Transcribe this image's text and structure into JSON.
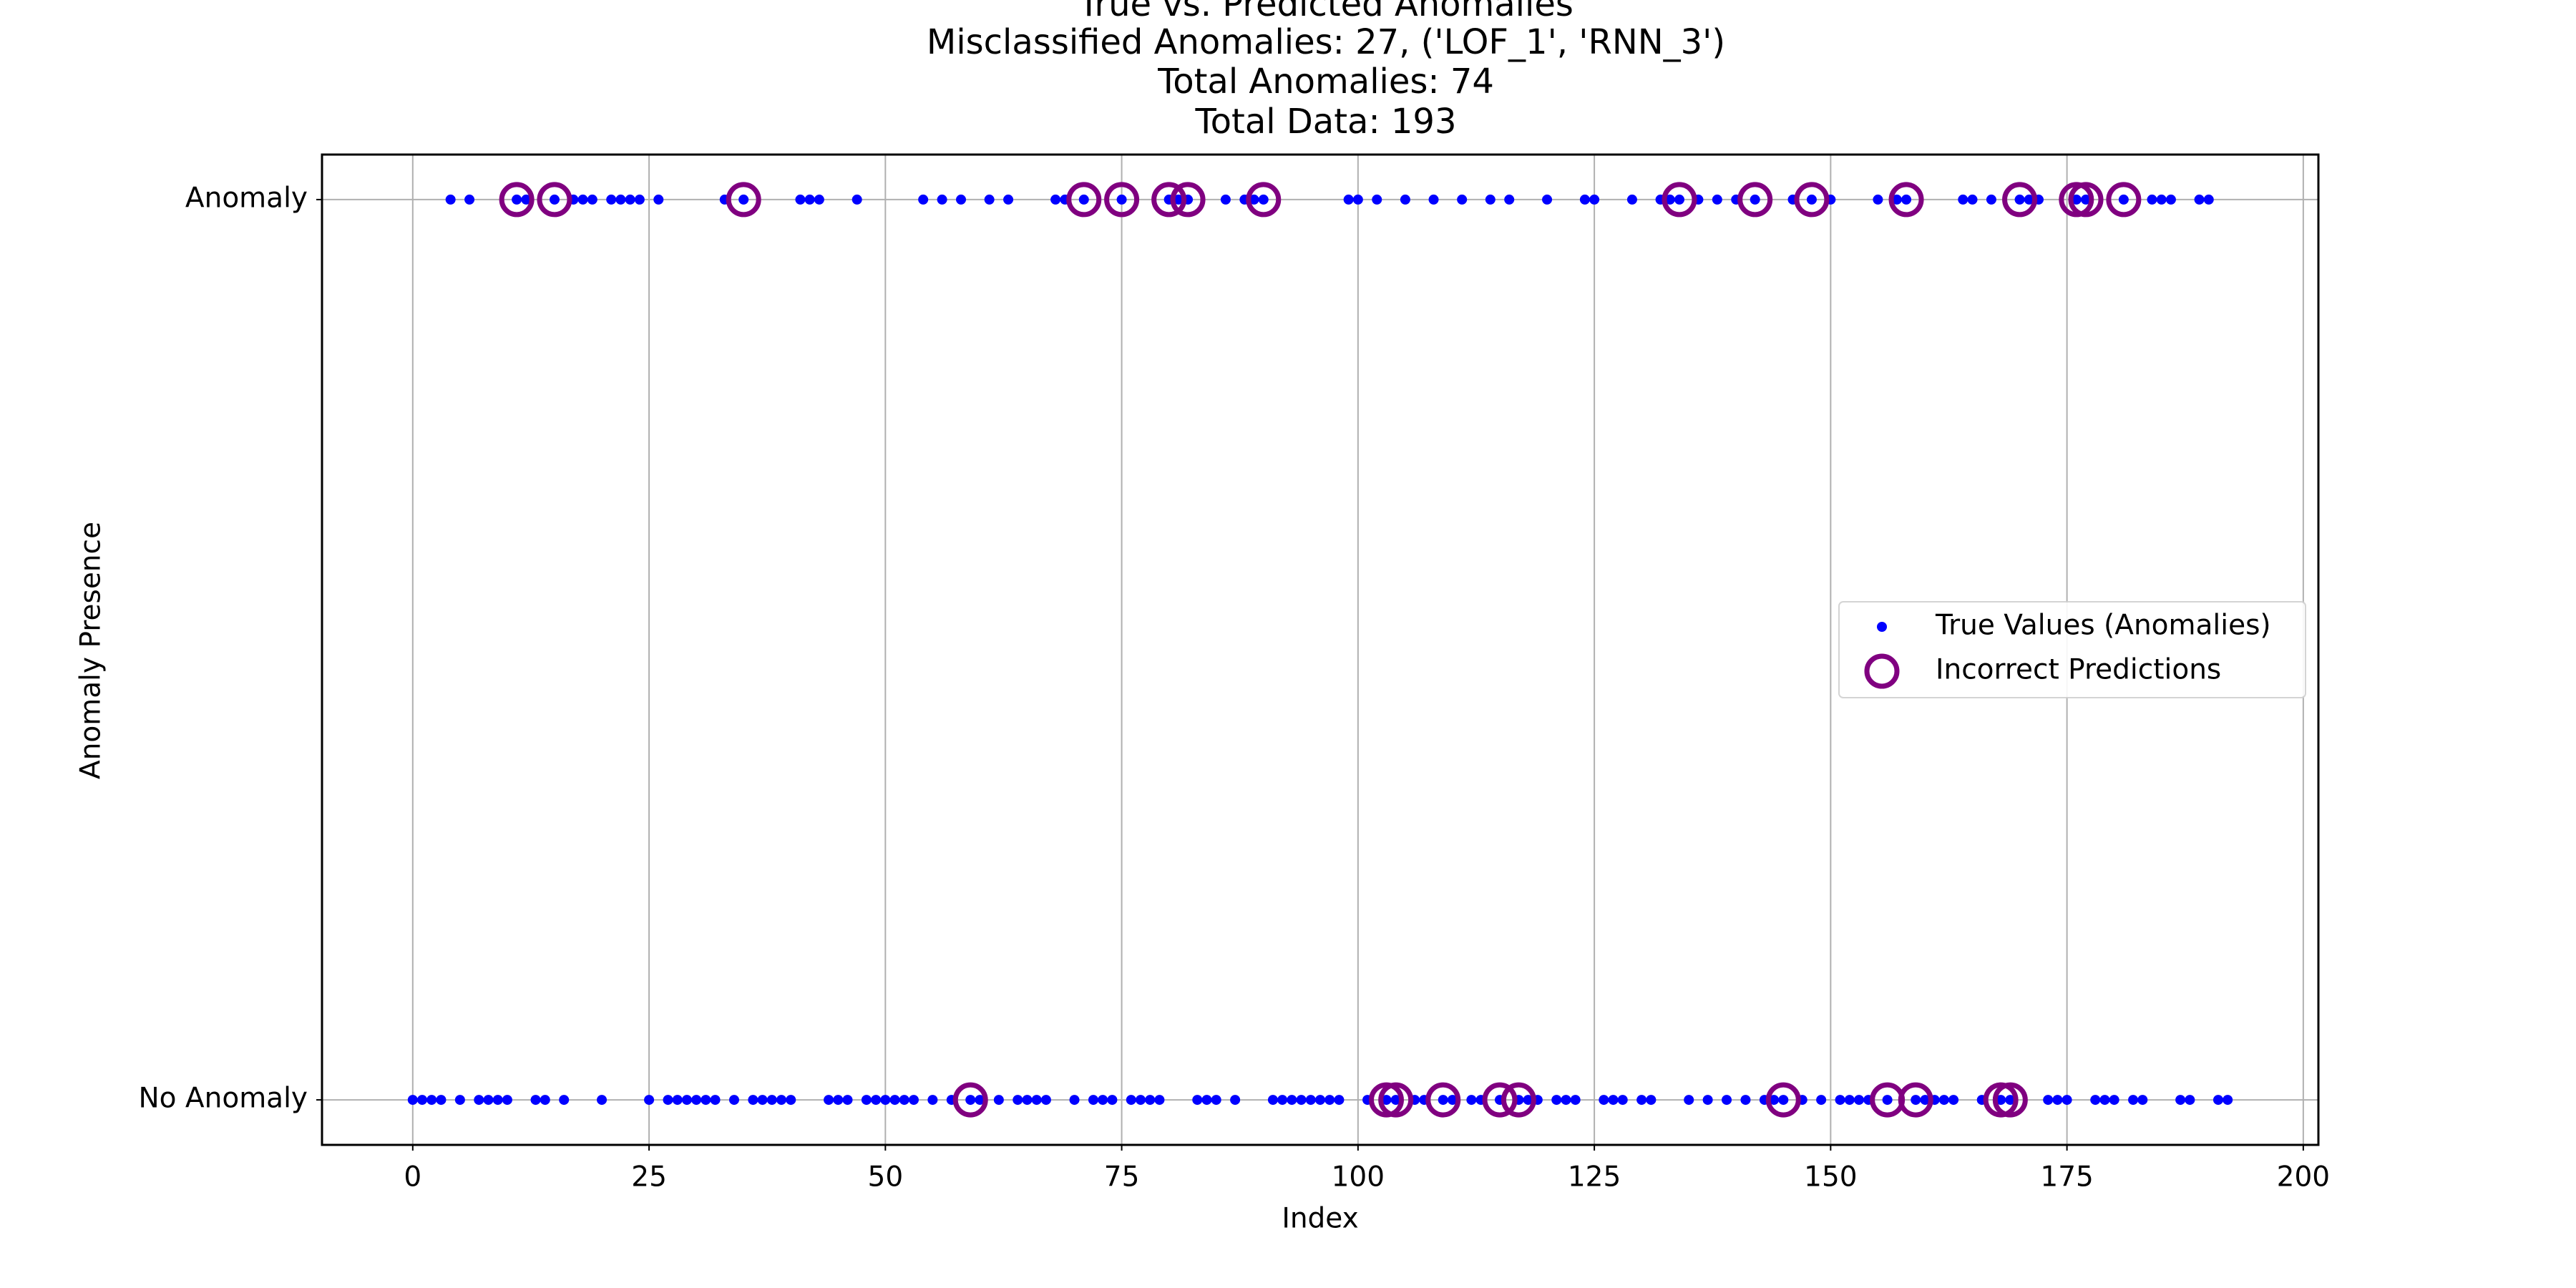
{
  "chart_data": {
    "type": "scatter",
    "title": [
      "True vs. Predicted Anomalies",
      "Misclassified Anomalies: 27, ('LOF_1', 'RNN_3')",
      "Total Anomalies: 74",
      "Total Data: 193"
    ],
    "x_label": "Index",
    "y_label": "Anomaly Presence",
    "xlim": [
      -9.6,
      201.6
    ],
    "xticks": [
      0,
      25,
      50,
      75,
      100,
      125,
      150,
      175,
      200
    ],
    "ylim": [
      -0.05,
      1.05
    ],
    "yticks": [
      {
        "value": 0,
        "label": "No Anomaly"
      },
      {
        "value": 1,
        "label": "Anomaly"
      }
    ],
    "grid": true,
    "legend": "center right",
    "series": [
      {
        "name": "True Values (Anomalies)",
        "color": "#0000ff",
        "marker": "dot",
        "x": [
          0,
          1,
          2,
          3,
          4,
          5,
          6,
          7,
          8,
          9,
          10,
          11,
          12,
          13,
          14,
          15,
          16,
          17,
          18,
          19,
          20,
          21,
          22,
          23,
          24,
          25,
          26,
          27,
          28,
          29,
          30,
          31,
          32,
          33,
          34,
          35,
          36,
          37,
          38,
          39,
          40,
          41,
          42,
          43,
          44,
          45,
          46,
          47,
          48,
          49,
          50,
          51,
          52,
          53,
          54,
          55,
          56,
          57,
          58,
          59,
          60,
          61,
          62,
          63,
          64,
          65,
          66,
          67,
          68,
          69,
          70,
          71,
          72,
          73,
          74,
          75,
          76,
          77,
          78,
          79,
          80,
          81,
          82,
          83,
          84,
          85,
          86,
          87,
          88,
          89,
          90,
          91,
          92,
          93,
          94,
          95,
          96,
          97,
          98,
          99,
          100,
          101,
          102,
          103,
          104,
          105,
          106,
          107,
          108,
          109,
          110,
          111,
          112,
          113,
          114,
          115,
          116,
          117,
          118,
          119,
          120,
          121,
          122,
          123,
          124,
          125,
          126,
          127,
          128,
          129,
          130,
          131,
          132,
          133,
          134,
          135,
          136,
          137,
          138,
          139,
          140,
          141,
          142,
          143,
          144,
          145,
          146,
          147,
          148,
          149,
          150,
          151,
          152,
          153,
          154,
          155,
          156,
          157,
          158,
          159,
          160,
          161,
          162,
          163,
          164,
          165,
          166,
          167,
          168,
          169,
          170,
          171,
          172,
          173,
          174,
          175,
          176,
          177,
          178,
          179,
          180,
          181,
          182,
          183,
          184,
          185,
          186,
          187,
          188,
          189,
          190,
          191,
          192
        ],
        "values": [
          0,
          0,
          0,
          0,
          1,
          0,
          1,
          0,
          0,
          0,
          0,
          1,
          1,
          0,
          0,
          1,
          0,
          1,
          1,
          1,
          0,
          1,
          1,
          1,
          1,
          0,
          1,
          0,
          0,
          0,
          0,
          0,
          0,
          1,
          0,
          1,
          0,
          0,
          0,
          0,
          0,
          1,
          1,
          1,
          0,
          0,
          0,
          1,
          0,
          0,
          0,
          0,
          0,
          0,
          1,
          0,
          1,
          0,
          1,
          0,
          0,
          1,
          0,
          1,
          0,
          0,
          0,
          0,
          1,
          1,
          0,
          1,
          0,
          0,
          0,
          1,
          0,
          0,
          0,
          0,
          1,
          1,
          1,
          0,
          0,
          0,
          1,
          0,
          1,
          1,
          1,
          0,
          0,
          0,
          0,
          0,
          0,
          0,
          0,
          1,
          1,
          0,
          1,
          0,
          0,
          1,
          0,
          0,
          1,
          0,
          0,
          1,
          0,
          0,
          1,
          0,
          1,
          0,
          0,
          0,
          1,
          0,
          0,
          0,
          1,
          1,
          0,
          0,
          0,
          1,
          0,
          0,
          1,
          1,
          1,
          0,
          1,
          0,
          1,
          0,
          1,
          0,
          1,
          0,
          0,
          0,
          1,
          0,
          1,
          0,
          1,
          0,
          0,
          0,
          0,
          1,
          0,
          1,
          1,
          0,
          0,
          0,
          0,
          0,
          1,
          1,
          0,
          1,
          0,
          0,
          1,
          1,
          1,
          0,
          0,
          0,
          1,
          1,
          0,
          0,
          0,
          1,
          0,
          0,
          1,
          1,
          1,
          0,
          0,
          1,
          1,
          0,
          0
        ]
      },
      {
        "name": "Incorrect Predictions",
        "color": "#800080",
        "marker": "ring",
        "x": [
          11,
          15,
          35,
          59,
          71,
          75,
          80,
          82,
          90,
          103,
          104,
          109,
          115,
          117,
          134,
          142,
          145,
          148,
          156,
          158,
          159,
          168,
          169,
          170,
          176,
          177,
          181
        ],
        "values": [
          1,
          1,
          1,
          0,
          1,
          1,
          1,
          1,
          1,
          0,
          0,
          0,
          0,
          0,
          1,
          1,
          0,
          1,
          0,
          1,
          0,
          0,
          0,
          1,
          1,
          1,
          1
        ]
      }
    ]
  }
}
